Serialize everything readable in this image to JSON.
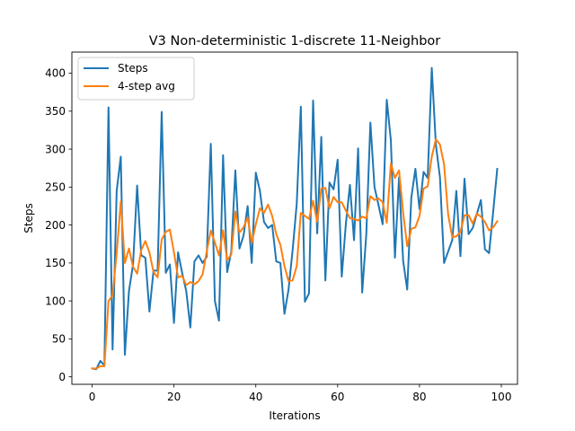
{
  "chart_data": {
    "type": "line",
    "title": "V3 Non-deterministic 1-discrete 11-Neighbor",
    "xlabel": "Iterations",
    "ylabel": "Steps",
    "xlim": [
      -4.95,
      103.95
    ],
    "ylim": [
      -9.85,
      427.85
    ],
    "xticks": [
      0,
      20,
      40,
      60,
      80,
      100
    ],
    "yticks": [
      0,
      50,
      100,
      150,
      200,
      250,
      300,
      350,
      400
    ],
    "grid": false,
    "legend": "top-left",
    "x": [
      0,
      1,
      2,
      3,
      4,
      5,
      6,
      7,
      8,
      9,
      10,
      11,
      12,
      13,
      14,
      15,
      16,
      17,
      18,
      19,
      20,
      21,
      22,
      23,
      24,
      25,
      26,
      27,
      28,
      29,
      30,
      31,
      32,
      33,
      34,
      35,
      36,
      37,
      38,
      39,
      40,
      41,
      42,
      43,
      44,
      45,
      46,
      47,
      48,
      49,
      50,
      51,
      52,
      53,
      54,
      55,
      56,
      57,
      58,
      59,
      60,
      61,
      62,
      63,
      64,
      65,
      66,
      67,
      68,
      69,
      70,
      71,
      72,
      73,
      74,
      75,
      76,
      77,
      78,
      79,
      80,
      81,
      82,
      83,
      84,
      85,
      86,
      87,
      88,
      89,
      90,
      91,
      92,
      93,
      94,
      95,
      96,
      97,
      98,
      99
    ],
    "series": [
      {
        "name": "Steps",
        "color": "#1f77b4",
        "values": [
          11,
          10,
          21,
          15,
          355,
          36,
          245,
          290,
          29,
          113,
          148,
          252,
          160,
          157,
          86,
          140,
          140,
          349,
          137,
          148,
          71,
          164,
          137,
          113,
          65,
          152,
          160,
          150,
          158,
          307,
          100,
          74,
          292,
          138,
          165,
          272,
          169,
          186,
          225,
          150,
          269,
          245,
          204,
          196,
          200,
          152,
          150,
          83,
          115,
          167,
          228,
          356,
          99,
          110,
          364,
          189,
          316,
          127,
          256,
          247,
          286,
          132,
          201,
          253,
          180,
          301,
          111,
          188,
          335,
          250,
          226,
          201,
          365,
          312,
          157,
          263,
          153,
          115,
          236,
          274,
          221,
          270,
          262,
          407,
          306,
          263,
          150,
          165,
          180,
          245,
          159,
          261,
          188,
          196,
          214,
          233,
          168,
          163,
          217,
          274
        ]
      },
      {
        "name": "4-step avg",
        "color": "#ff7f0e",
        "values": [
          11,
          11,
          14,
          14,
          100,
          107,
          163,
          231,
          150,
          169,
          145,
          136,
          167,
          179,
          164,
          138,
          131,
          181,
          191,
          194,
          164,
          131,
          133,
          121,
          125,
          122,
          126,
          135,
          165,
          193,
          177,
          160,
          193,
          154,
          161,
          218,
          190,
          197,
          210,
          176,
          201,
          222,
          216,
          227,
          212,
          188,
          174,
          146,
          126,
          127,
          146,
          216,
          212,
          208,
          232,
          204,
          248,
          249,
          222,
          237,
          230,
          230,
          219,
          209,
          208,
          206,
          211,
          209,
          238,
          233,
          235,
          230,
          203,
          281,
          262,
          272,
          217,
          172,
          195,
          197,
          212,
          248,
          251,
          290,
          313,
          306,
          280,
          214,
          184,
          185,
          191,
          213,
          213,
          202,
          215,
          211,
          204,
          193,
          197,
          205
        ]
      }
    ]
  }
}
